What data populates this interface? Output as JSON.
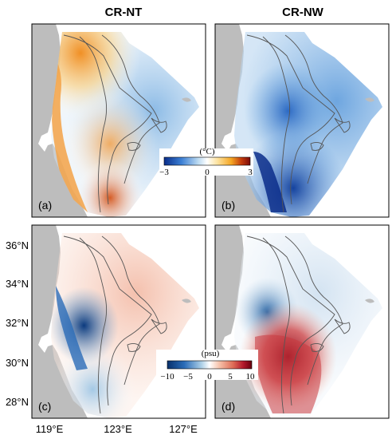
{
  "columns": [
    {
      "title": "CR-NT"
    },
    {
      "title": "CR-NW"
    }
  ],
  "panels": [
    {
      "label": "(a)",
      "variable": "temperature",
      "scenario": "CR-NT"
    },
    {
      "label": "(b)",
      "variable": "temperature",
      "scenario": "CR-NW"
    },
    {
      "label": "(c)",
      "variable": "salinity",
      "scenario": "CR-NT"
    },
    {
      "label": "(d)",
      "variable": "salinity",
      "scenario": "CR-NW"
    }
  ],
  "colorbars": {
    "temperature": {
      "unit": "(°C)",
      "ticks": [
        "−3",
        "0",
        "3"
      ],
      "min": -3,
      "max": 3,
      "colors": [
        "#0a2d8a",
        "#3b7fd4",
        "#bfdcf2",
        "#ffffff",
        "#fde3a0",
        "#f5a623",
        "#c23a0b",
        "#7a0a0a"
      ]
    },
    "salinity": {
      "unit": "(psu)",
      "ticks": [
        "−10",
        "−5",
        "0",
        "5",
        "10"
      ],
      "min": -10,
      "max": 10,
      "colors": [
        "#08306b",
        "#2a6cb8",
        "#a9cde6",
        "#ffffff",
        "#f6c0a8",
        "#de6b55",
        "#b2182b",
        "#67000d"
      ]
    }
  },
  "axes": {
    "lat_ticks": [
      "36°N",
      "34°N",
      "32°N",
      "30°N",
      "28°N"
    ],
    "lon_ticks": [
      "119°E",
      "123°E",
      "127°E"
    ]
  },
  "colors": {
    "land": "#bdbdbd",
    "contour": "#555555"
  }
}
